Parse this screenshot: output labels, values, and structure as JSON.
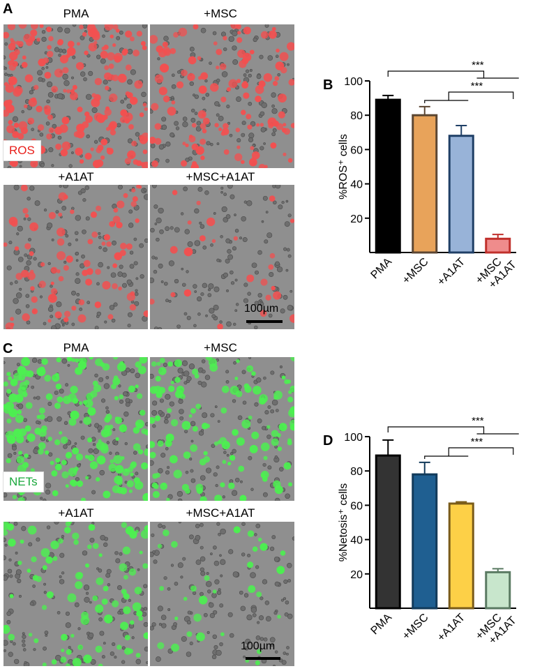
{
  "panels": {
    "A": {
      "letter": "A",
      "stain_label": "ROS",
      "stain_color": "#e8201c",
      "dot_color": "#f25050",
      "titles": [
        "PMA",
        "+MSC",
        "+A1AT",
        "+MSC+A1AT"
      ],
      "scale_label": "100µm",
      "dot_density": [
        0.95,
        0.6,
        0.42,
        0.12
      ]
    },
    "C": {
      "letter": "C",
      "stain_label": "NETs",
      "stain_color": "#1aa83c",
      "dot_color": "#4cf050",
      "titles": [
        "PMA",
        "+MSC",
        "+A1AT",
        "+MSC+A1AT"
      ],
      "scale_label": "100µm",
      "dot_density": [
        0.95,
        0.6,
        0.45,
        0.15
      ]
    }
  },
  "chart_data": [
    {
      "letter": "B",
      "type": "bar",
      "categories": [
        "PMA",
        "+MSC",
        "+A1AT",
        "+MSC\n+A1AT"
      ],
      "values": [
        89,
        80,
        68,
        8
      ],
      "errors": [
        2.5,
        5,
        6,
        2.5
      ],
      "colors": [
        "#000000",
        "#e8a35a",
        "#98b3d8",
        "#ef8c8c"
      ],
      "edge_colors": [
        "#000000",
        "#5b4632",
        "#1f3f66",
        "#c0302c"
      ],
      "ylabel": "%ROS⁺ cells",
      "ylim": [
        0,
        100
      ],
      "yticks": [
        20,
        40,
        60,
        80,
        100
      ],
      "significance": [
        {
          "from": 0,
          "to": 3,
          "label": "***"
        },
        {
          "from": 1,
          "to": 3,
          "label": "***"
        }
      ]
    },
    {
      "letter": "D",
      "type": "bar",
      "categories": [
        "PMA",
        "+MSC",
        "+A1AT",
        "+MSC\n+A1AT"
      ],
      "values": [
        89,
        78,
        61,
        21
      ],
      "errors": [
        9,
        7,
        1,
        2
      ],
      "colors": [
        "#333333",
        "#1f5f91",
        "#fdd047",
        "#c8e6cc"
      ],
      "edge_colors": [
        "#000000",
        "#123a5a",
        "#7a5c1a",
        "#5a7a62"
      ],
      "ylabel": "%Netosis⁺ cells",
      "ylim": [
        0,
        100
      ],
      "yticks": [
        20,
        40,
        60,
        80,
        100
      ],
      "significance": [
        {
          "from": 0,
          "to": 3,
          "label": "***"
        },
        {
          "from": 1,
          "to": 3,
          "label": "***"
        }
      ]
    }
  ]
}
